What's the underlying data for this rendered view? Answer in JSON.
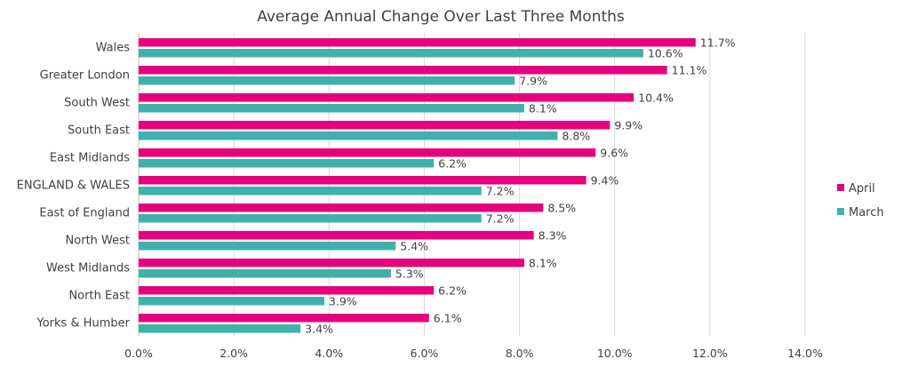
{
  "chart_data": {
    "type": "bar",
    "orientation": "horizontal",
    "title": "Average Annual Change Over Last Three Months",
    "xlabel": "",
    "ylabel": "",
    "categories": [
      "Wales",
      "Greater London",
      "South West",
      "South East",
      "East Midlands",
      "ENGLAND & WALES",
      "East of England",
      "North West",
      "West Midlands",
      "North East",
      "Yorks & Humber"
    ],
    "series": [
      {
        "name": "April",
        "color": "#e6007e",
        "values": [
          11.7,
          11.1,
          10.4,
          9.9,
          9.6,
          9.4,
          8.5,
          8.3,
          8.1,
          6.2,
          6.1
        ],
        "labels": [
          "11.7%",
          "11.1%",
          "10.4%",
          "9.9%",
          "9.6%",
          "9.4%",
          "8.5%",
          "8.3%",
          "8.1%",
          "6.2%",
          "6.1%"
        ]
      },
      {
        "name": "March",
        "color": "#3fb1aa",
        "values": [
          10.6,
          7.9,
          8.1,
          8.8,
          6.2,
          7.2,
          7.2,
          5.4,
          5.3,
          3.9,
          3.4
        ],
        "labels": [
          "10.6%",
          "7.9%",
          "8.1%",
          "8.8%",
          "6.2%",
          "7.2%",
          "7.2%",
          "5.4%",
          "5.3%",
          "3.9%",
          "3.4%"
        ]
      }
    ],
    "xlim": [
      0,
      14
    ],
    "xticks": [
      0,
      2,
      4,
      6,
      8,
      10,
      12,
      14
    ],
    "xtick_labels": [
      "0.0%",
      "2.0%",
      "4.0%",
      "6.0%",
      "8.0%",
      "10.0%",
      "12.0%",
      "14.0%"
    ],
    "grid": "vertical",
    "legend_position": "right"
  }
}
